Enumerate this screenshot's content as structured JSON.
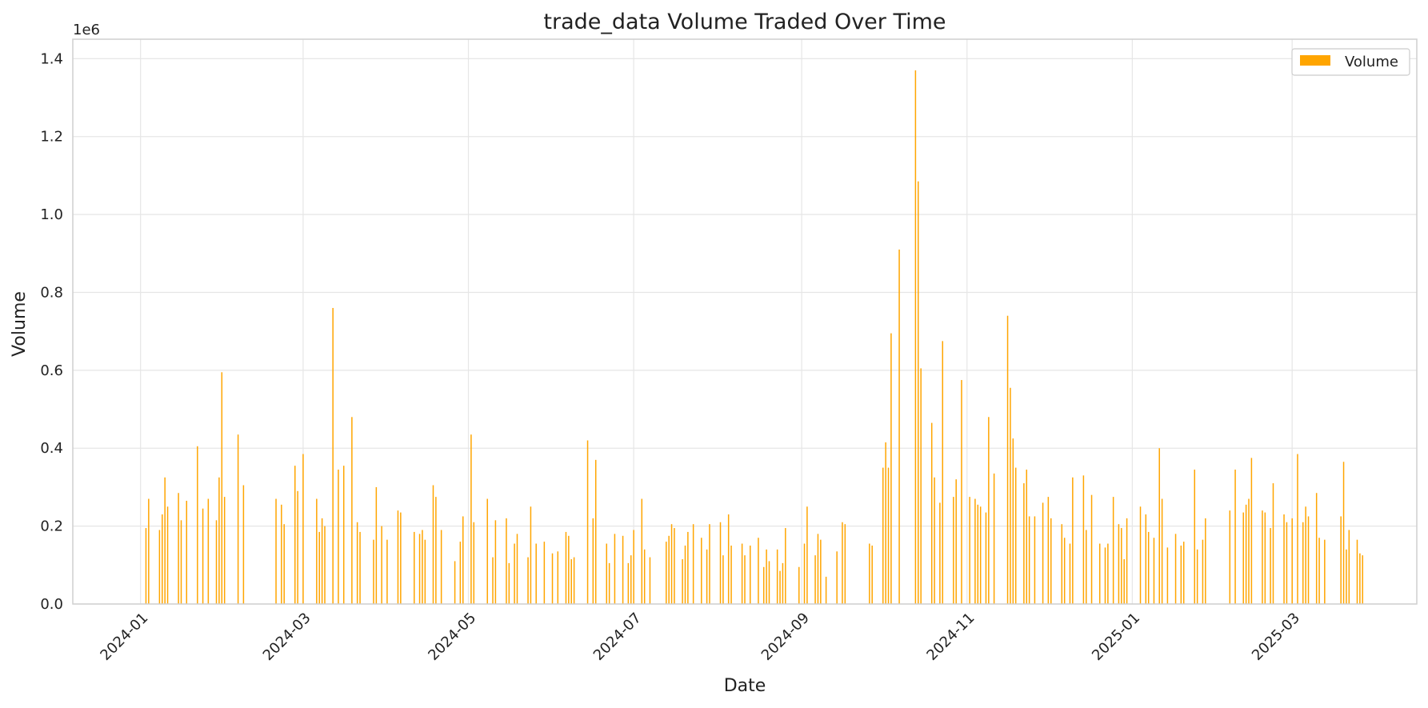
{
  "chart_data": {
    "type": "bar",
    "title": "trade_data Volume Traded Over Time",
    "xlabel": "Date",
    "ylabel": "Volume",
    "y_offset_label": "1e6",
    "y_scale": 1000000,
    "xlim": [
      "2023-12-07",
      "2025-04-16"
    ],
    "ylim": [
      0,
      1.45
    ],
    "x_ticks": [
      "2024-01",
      "2024-03",
      "2024-05",
      "2024-07",
      "2024-09",
      "2024-11",
      "2025-01",
      "2025-03"
    ],
    "y_ticks": [
      "0.0",
      "0.2",
      "0.4",
      "0.6",
      "0.8",
      "1.0",
      "1.2",
      "1.4"
    ],
    "grid": true,
    "legend": {
      "position": "top-right",
      "entries": [
        "Volume"
      ]
    },
    "colors": {
      "bar": "#FFA500"
    },
    "series": [
      {
        "name": "Volume",
        "points": [
          [
            "2024-01-03",
            0.195
          ],
          [
            "2024-01-04",
            0.27
          ],
          [
            "2024-01-08",
            0.19
          ],
          [
            "2024-01-09",
            0.23
          ],
          [
            "2024-01-10",
            0.325
          ],
          [
            "2024-01-11",
            0.25
          ],
          [
            "2024-01-15",
            0.285
          ],
          [
            "2024-01-16",
            0.215
          ],
          [
            "2024-01-18",
            0.265
          ],
          [
            "2024-01-22",
            0.405
          ],
          [
            "2024-01-24",
            0.245
          ],
          [
            "2024-01-26",
            0.27
          ],
          [
            "2024-01-29",
            0.215
          ],
          [
            "2024-01-30",
            0.325
          ],
          [
            "2024-01-31",
            0.595
          ],
          [
            "2024-02-01",
            0.275
          ],
          [
            "2024-02-06",
            0.435
          ],
          [
            "2024-02-08",
            0.305
          ],
          [
            "2024-02-20",
            0.27
          ],
          [
            "2024-02-22",
            0.255
          ],
          [
            "2024-02-23",
            0.205
          ],
          [
            "2024-02-27",
            0.355
          ],
          [
            "2024-02-28",
            0.29
          ],
          [
            "2024-03-01",
            0.385
          ],
          [
            "2024-03-06",
            0.27
          ],
          [
            "2024-03-07",
            0.185
          ],
          [
            "2024-03-08",
            0.22
          ],
          [
            "2024-03-09",
            0.2
          ],
          [
            "2024-03-12",
            0.76
          ],
          [
            "2024-03-14",
            0.345
          ],
          [
            "2024-03-16",
            0.355
          ],
          [
            "2024-03-19",
            0.48
          ],
          [
            "2024-03-21",
            0.21
          ],
          [
            "2024-03-22",
            0.185
          ],
          [
            "2024-03-27",
            0.165
          ],
          [
            "2024-03-28",
            0.3
          ],
          [
            "2024-03-30",
            0.2
          ],
          [
            "2024-04-01",
            0.165
          ],
          [
            "2024-04-05",
            0.24
          ],
          [
            "2024-04-06",
            0.235
          ],
          [
            "2024-04-11",
            0.185
          ],
          [
            "2024-04-13",
            0.18
          ],
          [
            "2024-04-14",
            0.19
          ],
          [
            "2024-04-15",
            0.165
          ],
          [
            "2024-04-18",
            0.305
          ],
          [
            "2024-04-19",
            0.275
          ],
          [
            "2024-04-21",
            0.19
          ],
          [
            "2024-04-26",
            0.11
          ],
          [
            "2024-04-28",
            0.16
          ],
          [
            "2024-04-29",
            0.225
          ],
          [
            "2024-05-02",
            0.435
          ],
          [
            "2024-05-03",
            0.21
          ],
          [
            "2024-05-08",
            0.27
          ],
          [
            "2024-05-10",
            0.12
          ],
          [
            "2024-05-11",
            0.215
          ],
          [
            "2024-05-15",
            0.22
          ],
          [
            "2024-05-16",
            0.105
          ],
          [
            "2024-05-18",
            0.155
          ],
          [
            "2024-05-19",
            0.18
          ],
          [
            "2024-05-23",
            0.12
          ],
          [
            "2024-05-24",
            0.25
          ],
          [
            "2024-05-26",
            0.155
          ],
          [
            "2024-05-29",
            0.16
          ],
          [
            "2024-06-01",
            0.13
          ],
          [
            "2024-06-03",
            0.135
          ],
          [
            "2024-06-06",
            0.185
          ],
          [
            "2024-06-07",
            0.175
          ],
          [
            "2024-06-08",
            0.115
          ],
          [
            "2024-06-09",
            0.12
          ],
          [
            "2024-06-14",
            0.42
          ],
          [
            "2024-06-16",
            0.22
          ],
          [
            "2024-06-17",
            0.37
          ],
          [
            "2024-06-21",
            0.155
          ],
          [
            "2024-06-22",
            0.105
          ],
          [
            "2024-06-24",
            0.18
          ],
          [
            "2024-06-27",
            0.175
          ],
          [
            "2024-06-29",
            0.105
          ],
          [
            "2024-06-30",
            0.125
          ],
          [
            "2024-07-01",
            0.19
          ],
          [
            "2024-07-04",
            0.27
          ],
          [
            "2024-07-05",
            0.14
          ],
          [
            "2024-07-07",
            0.12
          ],
          [
            "2024-07-13",
            0.16
          ],
          [
            "2024-07-14",
            0.175
          ],
          [
            "2024-07-15",
            0.205
          ],
          [
            "2024-07-16",
            0.195
          ],
          [
            "2024-07-19",
            0.115
          ],
          [
            "2024-07-20",
            0.15
          ],
          [
            "2024-07-21",
            0.185
          ],
          [
            "2024-07-23",
            0.205
          ],
          [
            "2024-07-26",
            0.17
          ],
          [
            "2024-07-28",
            0.14
          ],
          [
            "2024-07-29",
            0.205
          ],
          [
            "2024-08-02",
            0.21
          ],
          [
            "2024-08-03",
            0.125
          ],
          [
            "2024-08-05",
            0.23
          ],
          [
            "2024-08-06",
            0.15
          ],
          [
            "2024-08-10",
            0.155
          ],
          [
            "2024-08-11",
            0.125
          ],
          [
            "2024-08-13",
            0.15
          ],
          [
            "2024-08-16",
            0.17
          ],
          [
            "2024-08-18",
            0.095
          ],
          [
            "2024-08-19",
            0.14
          ],
          [
            "2024-08-20",
            0.11
          ],
          [
            "2024-08-23",
            0.14
          ],
          [
            "2024-08-24",
            0.085
          ],
          [
            "2024-08-25",
            0.105
          ],
          [
            "2024-08-26",
            0.195
          ],
          [
            "2024-08-31",
            0.095
          ],
          [
            "2024-09-02",
            0.155
          ],
          [
            "2024-09-03",
            0.25
          ],
          [
            "2024-09-06",
            0.125
          ],
          [
            "2024-09-07",
            0.18
          ],
          [
            "2024-09-08",
            0.165
          ],
          [
            "2024-09-10",
            0.07
          ],
          [
            "2024-09-14",
            0.135
          ],
          [
            "2024-09-16",
            0.21
          ],
          [
            "2024-09-17",
            0.205
          ],
          [
            "2024-09-26",
            0.155
          ],
          [
            "2024-09-27",
            0.15
          ],
          [
            "2024-10-01",
            0.35
          ],
          [
            "2024-10-02",
            0.415
          ],
          [
            "2024-10-03",
            0.35
          ],
          [
            "2024-10-04",
            0.695
          ],
          [
            "2024-10-07",
            0.91
          ],
          [
            "2024-10-13",
            1.37
          ],
          [
            "2024-10-14",
            1.085
          ],
          [
            "2024-10-15",
            0.605
          ],
          [
            "2024-10-19",
            0.465
          ],
          [
            "2024-10-20",
            0.325
          ],
          [
            "2024-10-22",
            0.26
          ],
          [
            "2024-10-23",
            0.675
          ],
          [
            "2024-10-27",
            0.275
          ],
          [
            "2024-10-28",
            0.32
          ],
          [
            "2024-10-30",
            0.575
          ],
          [
            "2024-11-02",
            0.275
          ],
          [
            "2024-11-04",
            0.27
          ],
          [
            "2024-11-05",
            0.255
          ],
          [
            "2024-11-06",
            0.25
          ],
          [
            "2024-11-08",
            0.235
          ],
          [
            "2024-11-09",
            0.48
          ],
          [
            "2024-11-11",
            0.335
          ],
          [
            "2024-11-16",
            0.74
          ],
          [
            "2024-11-17",
            0.555
          ],
          [
            "2024-11-18",
            0.425
          ],
          [
            "2024-11-19",
            0.35
          ],
          [
            "2024-11-22",
            0.31
          ],
          [
            "2024-11-23",
            0.345
          ],
          [
            "2024-11-24",
            0.225
          ],
          [
            "2024-11-26",
            0.225
          ],
          [
            "2024-11-29",
            0.26
          ],
          [
            "2024-12-01",
            0.275
          ],
          [
            "2024-12-02",
            0.22
          ],
          [
            "2024-12-06",
            0.205
          ],
          [
            "2024-12-07",
            0.17
          ],
          [
            "2024-12-09",
            0.155
          ],
          [
            "2024-12-10",
            0.325
          ],
          [
            "2024-12-14",
            0.33
          ],
          [
            "2024-12-15",
            0.19
          ],
          [
            "2024-12-17",
            0.28
          ],
          [
            "2024-12-20",
            0.155
          ],
          [
            "2024-12-22",
            0.145
          ],
          [
            "2024-12-23",
            0.155
          ],
          [
            "2024-12-25",
            0.275
          ],
          [
            "2024-12-27",
            0.205
          ],
          [
            "2024-12-28",
            0.195
          ],
          [
            "2024-12-29",
            0.115
          ],
          [
            "2024-12-30",
            0.22
          ],
          [
            "2025-01-04",
            0.25
          ],
          [
            "2025-01-06",
            0.23
          ],
          [
            "2025-01-07",
            0.185
          ],
          [
            "2025-01-09",
            0.17
          ],
          [
            "2025-01-11",
            0.4
          ],
          [
            "2025-01-12",
            0.27
          ],
          [
            "2025-01-14",
            0.145
          ],
          [
            "2025-01-17",
            0.18
          ],
          [
            "2025-01-19",
            0.15
          ],
          [
            "2025-01-20",
            0.16
          ],
          [
            "2025-01-24",
            0.345
          ],
          [
            "2025-01-25",
            0.14
          ],
          [
            "2025-01-27",
            0.165
          ],
          [
            "2025-01-28",
            0.22
          ],
          [
            "2025-02-06",
            0.24
          ],
          [
            "2025-02-08",
            0.345
          ],
          [
            "2025-02-11",
            0.235
          ],
          [
            "2025-02-12",
            0.255
          ],
          [
            "2025-02-13",
            0.27
          ],
          [
            "2025-02-14",
            0.375
          ],
          [
            "2025-02-18",
            0.24
          ],
          [
            "2025-02-19",
            0.235
          ],
          [
            "2025-02-21",
            0.195
          ],
          [
            "2025-02-22",
            0.31
          ],
          [
            "2025-02-26",
            0.23
          ],
          [
            "2025-02-27",
            0.21
          ],
          [
            "2025-03-01",
            0.22
          ],
          [
            "2025-03-03",
            0.385
          ],
          [
            "2025-03-05",
            0.21
          ],
          [
            "2025-03-06",
            0.25
          ],
          [
            "2025-03-07",
            0.225
          ],
          [
            "2025-03-10",
            0.285
          ],
          [
            "2025-03-11",
            0.17
          ],
          [
            "2025-03-13",
            0.165
          ],
          [
            "2025-03-19",
            0.225
          ],
          [
            "2025-03-20",
            0.365
          ],
          [
            "2025-03-21",
            0.14
          ],
          [
            "2025-03-22",
            0.19
          ],
          [
            "2025-03-25",
            0.165
          ],
          [
            "2025-03-26",
            0.13
          ],
          [
            "2025-03-27",
            0.125
          ]
        ]
      }
    ]
  }
}
